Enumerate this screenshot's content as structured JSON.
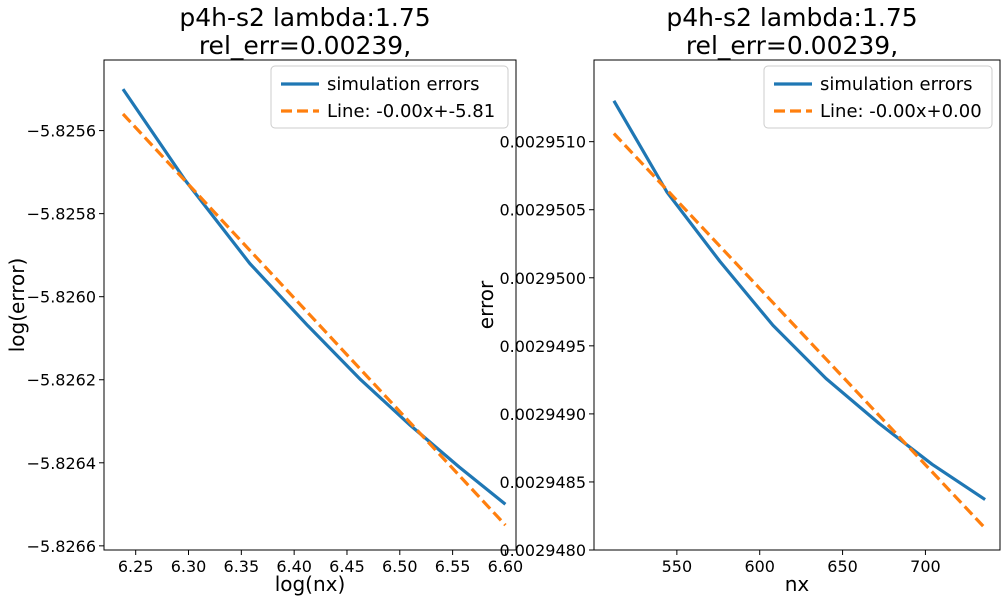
{
  "chart_data": [
    {
      "type": "line",
      "title_line1": "p4h-s2 lambda:1.75",
      "title_line2": "rel_err=0.00239,",
      "xlabel": "log(nx)",
      "ylabel": "log(error)",
      "xlim": [
        6.22,
        6.61
      ],
      "ylim": [
        -5.82661,
        -5.82543
      ],
      "xticks": [
        6.25,
        6.3,
        6.35,
        6.4,
        6.45,
        6.5,
        6.55,
        6.6
      ],
      "xtick_labels": [
        "6.25",
        "6.30",
        "6.35",
        "6.40",
        "6.45",
        "6.50",
        "6.55",
        "6.60"
      ],
      "yticks": [
        -5.8256,
        -5.8258,
        -5.826,
        -5.8262,
        -5.8264,
        -5.8266
      ],
      "ytick_labels": [
        "−5.8256",
        "−5.8258",
        "−5.8260",
        "−5.8262",
        "−5.8264",
        "−5.8266"
      ],
      "legend_position": "top-right",
      "series": [
        {
          "name": "simulation errors",
          "color": "#1f77b4",
          "style": "solid",
          "x": [
            6.238,
            6.297,
            6.358,
            6.413,
            6.463,
            6.51,
            6.556,
            6.6
          ],
          "y": [
            -5.8255,
            -5.82572,
            -5.82592,
            -5.82607,
            -5.8262,
            -5.82631,
            -5.82641,
            -5.8265
          ]
        },
        {
          "name": "Line: -0.00x+-5.81",
          "color": "#ff7f0e",
          "style": "dashed",
          "x": [
            6.238,
            6.6
          ],
          "y": [
            -5.82556,
            -5.82655
          ]
        }
      ]
    },
    {
      "type": "line",
      "title_line1": "p4h-s2 lambda:1.75",
      "title_line2": "rel_err=0.00239,",
      "xlabel": "nx",
      "ylabel": "error",
      "xlim": [
        500,
        745
      ],
      "ylim": [
        0.002948,
        0.0029516
      ],
      "xticks": [
        550,
        600,
        650,
        700
      ],
      "xtick_labels": [
        "550",
        "600",
        "650",
        "700"
      ],
      "yticks": [
        0.002951,
        0.0029505,
        0.00295,
        0.0029495,
        0.002949,
        0.0029485,
        0.002948
      ],
      "ytick_labels": [
        "0.0029510",
        "0.0029505",
        "0.0029500",
        "0.0029495",
        "0.0029490",
        "0.0029485",
        "0.0029480"
      ],
      "legend_position": "top-right",
      "series": [
        {
          "name": "simulation errors",
          "color": "#1f77b4",
          "style": "solid",
          "x": [
            512,
            544,
            576,
            608,
            640,
            672,
            704,
            736
          ],
          "y": [
            0.0029513,
            0.00295063,
            0.00295012,
            0.00294965,
            0.00294926,
            0.00294893,
            0.00294863,
            0.00294837
          ]
        },
        {
          "name": "Line: -0.00x+0.00",
          "color": "#ff7f0e",
          "style": "dashed",
          "x": [
            512,
            736
          ],
          "y": [
            0.00295106,
            0.00294816
          ]
        }
      ]
    }
  ]
}
